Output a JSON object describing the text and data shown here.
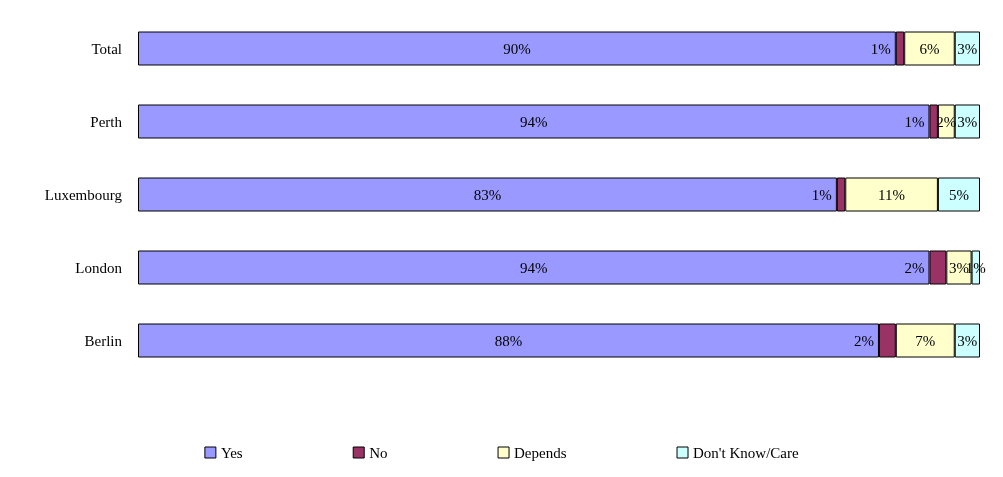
{
  "chart_data": {
    "type": "bar",
    "orientation": "horizontal",
    "stacked": true,
    "categories": [
      "Total",
      "Perth",
      "Luxembourg",
      "London",
      "Berlin"
    ],
    "series": [
      {
        "name": "Yes",
        "color": "#9999ff",
        "values": [
          90,
          94,
          83,
          94,
          88
        ],
        "value_labels": [
          "90%",
          "94%",
          "83%",
          "94%",
          "88%"
        ]
      },
      {
        "name": "No",
        "color": "#993366",
        "values": [
          1,
          1,
          1,
          2,
          2
        ],
        "value_labels": [
          "1%",
          "1%",
          "1%",
          "2%",
          "2%"
        ]
      },
      {
        "name": "Depends",
        "color": "#ffffcc",
        "values": [
          6,
          2,
          11,
          3,
          7
        ],
        "value_labels": [
          "6%",
          "2%",
          "11%",
          "3%",
          "7%"
        ]
      },
      {
        "name": "Don't Know/Care",
        "color": "#ccffff",
        "values": [
          3,
          3,
          5,
          1,
          3
        ],
        "value_labels": [
          "3%",
          "3%",
          "5%",
          "1%",
          "3%"
        ]
      }
    ],
    "legend": "bottom"
  }
}
